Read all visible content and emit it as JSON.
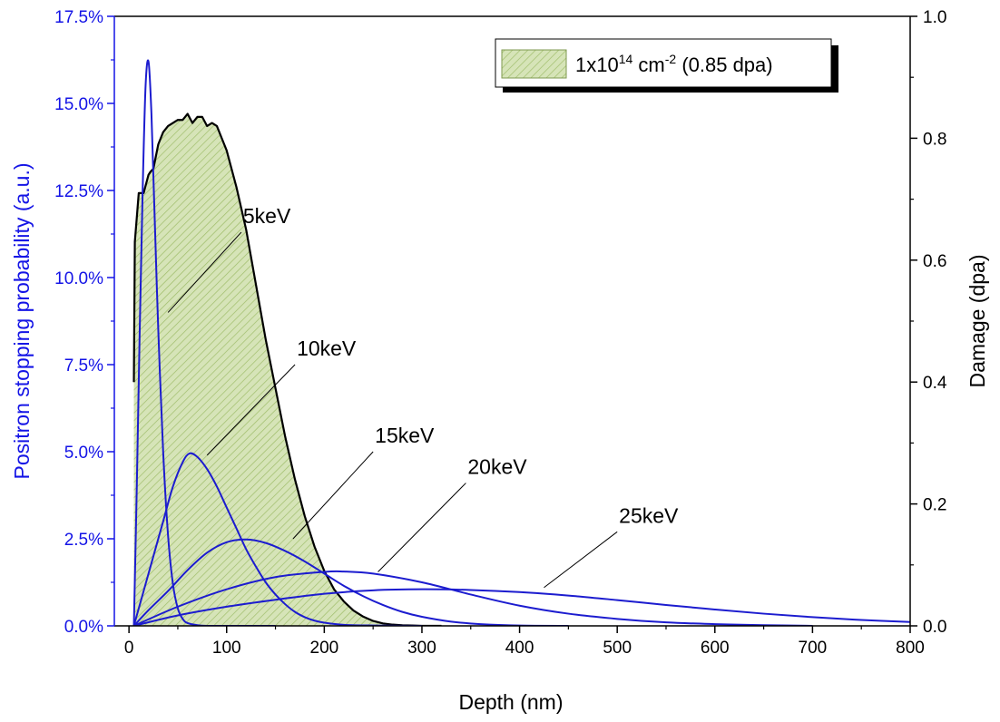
{
  "chart_data": {
    "type": "line",
    "xlabel": "Depth (nm)",
    "ylabel_left": "Positron stopping probability (a.u.)",
    "ylabel_right": "Damage (dpa)",
    "xlim": [
      -15,
      800
    ],
    "ylim_left": [
      0,
      17.5
    ],
    "ylim_right": [
      0,
      1.0
    ],
    "x_ticks": [
      "0",
      "100",
      "200",
      "300",
      "400",
      "500",
      "600",
      "700",
      "800"
    ],
    "y_left_ticks": [
      "0.0%",
      "2.5%",
      "5.0%",
      "7.5%",
      "10.0%",
      "12.5%",
      "15.0%",
      "17.5%"
    ],
    "y_right_ticks": [
      "0.0",
      "0.2",
      "0.4",
      "0.6",
      "0.8",
      "1.0"
    ],
    "legend": {
      "placement": "top-right",
      "text_main": "1x10",
      "text_sup1": "14",
      "text_unit": " cm",
      "text_sup2": "-2",
      "text_tail": " (0.85 dpa)"
    },
    "colors": {
      "positron": "#1c1ccf",
      "left_axis": "#1414e6",
      "damage_fill": "#d6e4b8",
      "damage_hatch": "#9fbd6a",
      "damage_line": "#000000"
    },
    "damage_series": {
      "name": "1x10^14 cm^-2 (0.85 dpa)",
      "x": [
        5,
        6,
        10,
        15,
        20,
        22,
        25,
        30,
        35,
        40,
        45,
        50,
        55,
        60,
        65,
        70,
        75,
        80,
        85,
        90,
        95,
        100,
        110,
        120,
        130,
        140,
        150,
        160,
        170,
        180,
        190,
        200,
        210,
        220,
        230,
        240,
        250,
        260,
        270,
        280,
        290,
        300,
        320
      ],
      "y": [
        0.4,
        0.63,
        0.71,
        0.71,
        0.74,
        0.745,
        0.75,
        0.79,
        0.81,
        0.82,
        0.825,
        0.83,
        0.83,
        0.84,
        0.825,
        0.835,
        0.835,
        0.82,
        0.825,
        0.82,
        0.8,
        0.78,
        0.72,
        0.65,
        0.56,
        0.47,
        0.39,
        0.31,
        0.24,
        0.18,
        0.13,
        0.09,
        0.06,
        0.04,
        0.025,
        0.015,
        0.008,
        0.004,
        0.002,
        0.001,
        0.0005,
        0.0,
        0.0
      ]
    },
    "positron_series": [
      {
        "name": "5keV",
        "label": "5keV",
        "x": [
          5,
          8,
          11,
          14,
          17,
          20,
          23,
          26,
          30,
          35,
          40,
          45,
          50,
          55,
          60,
          70,
          80,
          90,
          100,
          120,
          150
        ],
        "y": [
          0.0,
          4.0,
          8.5,
          12.5,
          15.5,
          16.2,
          14.7,
          12.0,
          8.5,
          5.0,
          2.6,
          1.2,
          0.5,
          0.2,
          0.08,
          0.02,
          0.0,
          0.0,
          0.0,
          0.0,
          0.0
        ]
      },
      {
        "name": "10keV",
        "label": "10keV",
        "x": [
          5,
          15,
          25,
          35,
          45,
          55,
          62,
          70,
          80,
          90,
          100,
          110,
          120,
          130,
          140,
          150,
          160,
          170,
          180,
          190,
          200,
          220,
          250,
          300
        ],
        "y": [
          0.0,
          1.0,
          2.0,
          3.0,
          4.0,
          4.7,
          4.95,
          4.85,
          4.5,
          4.0,
          3.4,
          2.8,
          2.2,
          1.7,
          1.25,
          0.9,
          0.62,
          0.4,
          0.25,
          0.15,
          0.09,
          0.03,
          0.01,
          0.0
        ]
      },
      {
        "name": "15keV",
        "label": "15keV",
        "x": [
          5,
          20,
          40,
          60,
          80,
          100,
          120,
          140,
          160,
          180,
          200,
          220,
          240,
          260,
          280,
          300,
          330,
          360,
          400,
          450
        ],
        "y": [
          0.0,
          0.45,
          1.0,
          1.6,
          2.1,
          2.4,
          2.48,
          2.38,
          2.15,
          1.85,
          1.5,
          1.15,
          0.85,
          0.6,
          0.4,
          0.26,
          0.12,
          0.05,
          0.01,
          0.0
        ]
      },
      {
        "name": "20keV",
        "label": "20keV",
        "x": [
          5,
          50,
          100,
          150,
          200,
          220,
          250,
          300,
          350,
          400,
          450,
          500,
          550,
          600,
          650,
          700
        ],
        "y": [
          0.0,
          0.55,
          1.05,
          1.4,
          1.55,
          1.56,
          1.5,
          1.25,
          0.9,
          0.58,
          0.35,
          0.2,
          0.1,
          0.05,
          0.02,
          0.0
        ]
      },
      {
        "name": "25keV",
        "label": "25keV",
        "x": [
          5,
          50,
          100,
          150,
          200,
          250,
          300,
          350,
          400,
          450,
          500,
          550,
          600,
          650,
          700,
          750,
          800
        ],
        "y": [
          0.0,
          0.3,
          0.55,
          0.75,
          0.92,
          1.02,
          1.05,
          1.03,
          0.97,
          0.87,
          0.74,
          0.6,
          0.47,
          0.35,
          0.25,
          0.17,
          0.11
        ]
      }
    ],
    "annotations": [
      {
        "text": "5keV",
        "series": "5keV",
        "x_from": 40,
        "y_from": 9.0,
        "x_to": 115,
        "y_to": 11.3
      },
      {
        "text": "10keV",
        "series": "10keV",
        "x_from": 80,
        "y_from": 4.9,
        "x_to": 170,
        "y_to": 7.5
      },
      {
        "text": "15keV",
        "series": "15keV",
        "x_from": 168,
        "y_from": 2.5,
        "x_to": 250,
        "y_to": 5.0
      },
      {
        "text": "20keV",
        "series": "20keV",
        "x_from": 255,
        "y_from": 1.55,
        "x_to": 345,
        "y_to": 4.1
      },
      {
        "text": "25keV",
        "series": "25keV",
        "x_from": 425,
        "y_from": 1.1,
        "x_to": 500,
        "y_to": 2.7
      }
    ]
  }
}
